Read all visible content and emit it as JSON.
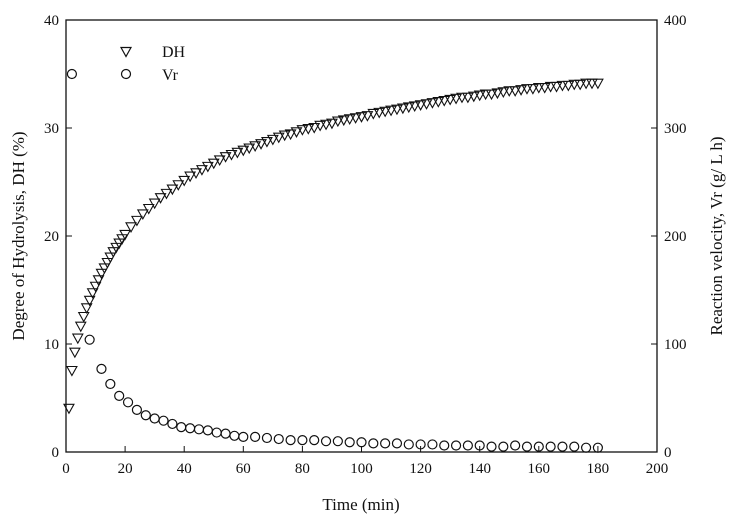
{
  "chart_data": {
    "type": "scatter",
    "title": "",
    "xlabel": "Time (min)",
    "ylabel_left": "Degree of Hydrolysis, DH (%)",
    "ylabel_right": "Reaction velocity, Vr (g/ L h)",
    "xlim": [
      0,
      200
    ],
    "ylim_left": [
      0,
      40
    ],
    "ylim_right": [
      0,
      400
    ],
    "xticks": [
      "0",
      "20",
      "40",
      "60",
      "80",
      "100",
      "120",
      "140",
      "160",
      "180",
      "200"
    ],
    "yticks_left": [
      "0",
      "10",
      "20",
      "30",
      "40"
    ],
    "yticks_right": [
      "0",
      "100",
      "200",
      "300",
      "400"
    ],
    "grid": false,
    "legend_position": "top-left",
    "series": [
      {
        "name": "DH",
        "marker": "triangle-down",
        "axis": "left",
        "x": [
          1,
          2,
          3,
          4,
          5,
          6,
          7,
          8,
          9,
          10,
          11,
          12,
          13,
          14,
          15,
          16,
          17,
          18,
          19,
          20,
          22,
          24,
          26,
          28,
          30,
          32,
          34,
          36,
          38,
          40,
          42,
          44,
          46,
          48,
          50,
          52,
          54,
          56,
          58,
          60,
          62,
          64,
          66,
          68,
          70,
          72,
          74,
          76,
          78,
          80,
          82,
          84,
          86,
          88,
          90,
          92,
          94,
          96,
          98,
          100,
          102,
          104,
          106,
          108,
          110,
          112,
          114,
          116,
          118,
          120,
          122,
          124,
          126,
          128,
          130,
          132,
          134,
          136,
          138,
          140,
          142,
          144,
          146,
          148,
          150,
          152,
          154,
          156,
          158,
          160,
          162,
          164,
          166,
          168,
          170,
          172,
          174,
          176,
          178,
          180
        ],
        "y": [
          4.0,
          7.5,
          9.2,
          10.5,
          11.6,
          12.5,
          13.3,
          14.0,
          14.7,
          15.3,
          15.9,
          16.5,
          17.0,
          17.5,
          18.0,
          18.5,
          18.9,
          19.3,
          19.7,
          20.1,
          20.8,
          21.4,
          22.0,
          22.5,
          23.0,
          23.5,
          23.9,
          24.3,
          24.7,
          25.1,
          25.5,
          25.8,
          26.1,
          26.4,
          26.7,
          27.0,
          27.3,
          27.5,
          27.7,
          27.9,
          28.1,
          28.3,
          28.5,
          28.7,
          28.9,
          29.1,
          29.3,
          29.4,
          29.6,
          29.8,
          29.9,
          30.0,
          30.2,
          30.3,
          30.4,
          30.6,
          30.7,
          30.8,
          30.9,
          31.0,
          31.1,
          31.3,
          31.4,
          31.5,
          31.6,
          31.7,
          31.8,
          31.9,
          32.0,
          32.1,
          32.2,
          32.3,
          32.4,
          32.5,
          32.6,
          32.7,
          32.8,
          32.8,
          32.9,
          33.0,
          33.1,
          33.1,
          33.2,
          33.3,
          33.4,
          33.4,
          33.5,
          33.6,
          33.6,
          33.7,
          33.7,
          33.8,
          33.8,
          33.9,
          33.9,
          34.0,
          34.0,
          34.1,
          34.1,
          34.1
        ]
      },
      {
        "name": "Vr",
        "marker": "circle",
        "axis": "right",
        "x": [
          2,
          8,
          12,
          15,
          18,
          21,
          24,
          27,
          30,
          33,
          36,
          39,
          42,
          45,
          48,
          51,
          54,
          57,
          60,
          64,
          68,
          72,
          76,
          80,
          84,
          88,
          92,
          96,
          100,
          104,
          108,
          112,
          116,
          120,
          124,
          128,
          132,
          136,
          140,
          144,
          148,
          152,
          156,
          160,
          164,
          168,
          172,
          176,
          180
        ],
        "y": [
          350,
          104,
          77,
          63,
          52,
          46,
          39,
          34,
          31,
          29,
          26,
          23,
          22,
          21,
          20,
          18,
          17,
          15,
          14,
          14,
          13,
          12,
          11,
          11,
          11,
          10,
          10,
          9,
          9,
          8,
          8,
          8,
          7,
          7,
          7,
          6,
          6,
          6,
          6,
          5,
          5,
          6,
          5,
          5,
          5,
          5,
          5,
          4,
          4
        ]
      }
    ]
  }
}
